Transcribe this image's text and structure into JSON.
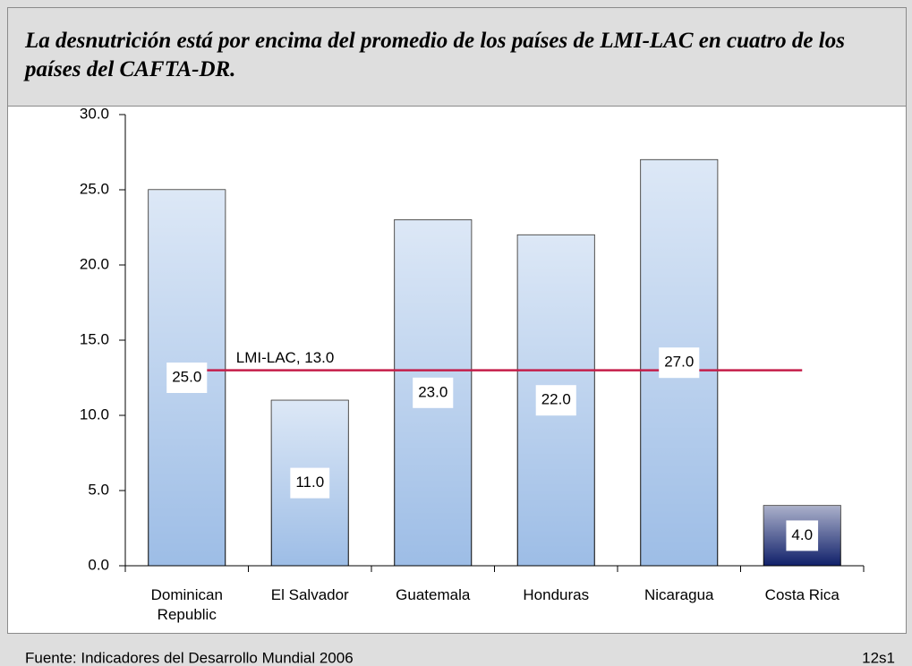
{
  "chart_data": {
    "type": "bar",
    "title": "La desnutrición está por encima del promedio de los países de LMI-LAC en cuatro de los países del CAFTA-DR.",
    "categories": [
      "Dominican Republic",
      "El Salvador",
      "Guatemala",
      "Honduras",
      "Nicaragua",
      "Costa Rica"
    ],
    "values": [
      25,
      11,
      23,
      22,
      27,
      4
    ],
    "value_labels": [
      "25.0",
      "11.0",
      "23.0",
      "22.0",
      "27.0",
      "4.0"
    ],
    "colors": [
      "#9dbde6",
      "#9dbde6",
      "#9dbde6",
      "#9dbde6",
      "#9dbde6",
      "#10206a"
    ],
    "ylim": [
      0,
      30
    ],
    "yticks": [
      {
        "value": 0,
        "label": "0.0"
      },
      {
        "value": 5,
        "label": "5.0"
      },
      {
        "value": 10,
        "label": "10.0"
      },
      {
        "value": 15,
        "label": "15.0"
      },
      {
        "value": 20,
        "label": "20.0"
      },
      {
        "value": 25,
        "label": "25.0"
      },
      {
        "value": 30,
        "label": "30.0"
      }
    ],
    "reference_line": {
      "value": 13,
      "label": "LMI-LAC, 13.0",
      "color": "#c41e4a"
    },
    "source": "Fuente: Indicadores del Desarrollo Mundial 2006",
    "slide_id": "12s1"
  }
}
